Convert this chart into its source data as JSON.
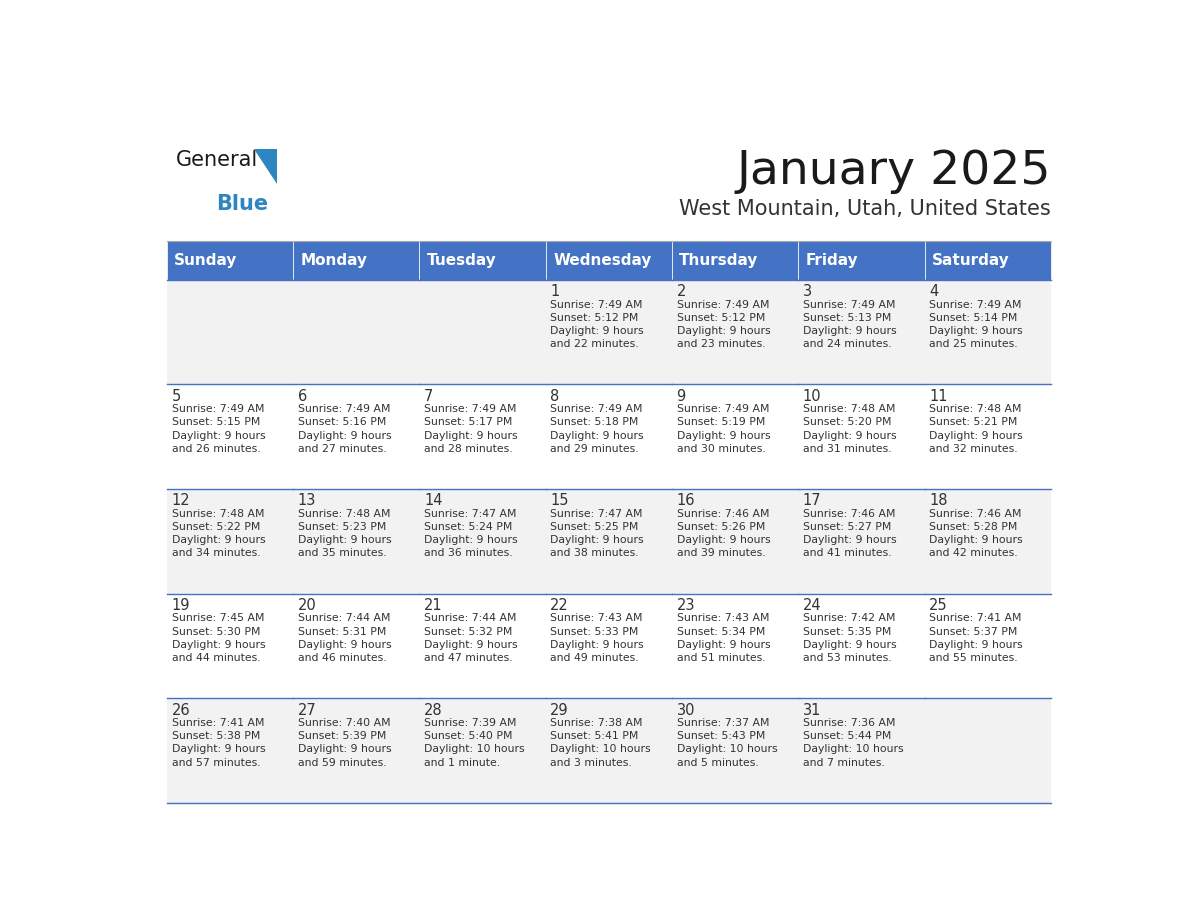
{
  "title": "January 2025",
  "subtitle": "West Mountain, Utah, United States",
  "days_of_week": [
    "Sunday",
    "Monday",
    "Tuesday",
    "Wednesday",
    "Thursday",
    "Friday",
    "Saturday"
  ],
  "header_bg": "#4472C4",
  "header_text": "#FFFFFF",
  "cell_bg_odd": "#F2F2F2",
  "cell_bg_even": "#FFFFFF",
  "cell_border": "#4472C4",
  "day_num_color": "#333333",
  "info_color": "#333333",
  "title_color": "#1a1a1a",
  "subtitle_color": "#333333",
  "logo_general_color": "#1a1a1a",
  "logo_blue_color": "#2E86C1",
  "weeks": [
    [
      {
        "day": 0,
        "info": ""
      },
      {
        "day": 0,
        "info": ""
      },
      {
        "day": 0,
        "info": ""
      },
      {
        "day": 1,
        "info": "Sunrise: 7:49 AM\nSunset: 5:12 PM\nDaylight: 9 hours\nand 22 minutes."
      },
      {
        "day": 2,
        "info": "Sunrise: 7:49 AM\nSunset: 5:12 PM\nDaylight: 9 hours\nand 23 minutes."
      },
      {
        "day": 3,
        "info": "Sunrise: 7:49 AM\nSunset: 5:13 PM\nDaylight: 9 hours\nand 24 minutes."
      },
      {
        "day": 4,
        "info": "Sunrise: 7:49 AM\nSunset: 5:14 PM\nDaylight: 9 hours\nand 25 minutes."
      }
    ],
    [
      {
        "day": 5,
        "info": "Sunrise: 7:49 AM\nSunset: 5:15 PM\nDaylight: 9 hours\nand 26 minutes."
      },
      {
        "day": 6,
        "info": "Sunrise: 7:49 AM\nSunset: 5:16 PM\nDaylight: 9 hours\nand 27 minutes."
      },
      {
        "day": 7,
        "info": "Sunrise: 7:49 AM\nSunset: 5:17 PM\nDaylight: 9 hours\nand 28 minutes."
      },
      {
        "day": 8,
        "info": "Sunrise: 7:49 AM\nSunset: 5:18 PM\nDaylight: 9 hours\nand 29 minutes."
      },
      {
        "day": 9,
        "info": "Sunrise: 7:49 AM\nSunset: 5:19 PM\nDaylight: 9 hours\nand 30 minutes."
      },
      {
        "day": 10,
        "info": "Sunrise: 7:48 AM\nSunset: 5:20 PM\nDaylight: 9 hours\nand 31 minutes."
      },
      {
        "day": 11,
        "info": "Sunrise: 7:48 AM\nSunset: 5:21 PM\nDaylight: 9 hours\nand 32 minutes."
      }
    ],
    [
      {
        "day": 12,
        "info": "Sunrise: 7:48 AM\nSunset: 5:22 PM\nDaylight: 9 hours\nand 34 minutes."
      },
      {
        "day": 13,
        "info": "Sunrise: 7:48 AM\nSunset: 5:23 PM\nDaylight: 9 hours\nand 35 minutes."
      },
      {
        "day": 14,
        "info": "Sunrise: 7:47 AM\nSunset: 5:24 PM\nDaylight: 9 hours\nand 36 minutes."
      },
      {
        "day": 15,
        "info": "Sunrise: 7:47 AM\nSunset: 5:25 PM\nDaylight: 9 hours\nand 38 minutes."
      },
      {
        "day": 16,
        "info": "Sunrise: 7:46 AM\nSunset: 5:26 PM\nDaylight: 9 hours\nand 39 minutes."
      },
      {
        "day": 17,
        "info": "Sunrise: 7:46 AM\nSunset: 5:27 PM\nDaylight: 9 hours\nand 41 minutes."
      },
      {
        "day": 18,
        "info": "Sunrise: 7:46 AM\nSunset: 5:28 PM\nDaylight: 9 hours\nand 42 minutes."
      }
    ],
    [
      {
        "day": 19,
        "info": "Sunrise: 7:45 AM\nSunset: 5:30 PM\nDaylight: 9 hours\nand 44 minutes."
      },
      {
        "day": 20,
        "info": "Sunrise: 7:44 AM\nSunset: 5:31 PM\nDaylight: 9 hours\nand 46 minutes."
      },
      {
        "day": 21,
        "info": "Sunrise: 7:44 AM\nSunset: 5:32 PM\nDaylight: 9 hours\nand 47 minutes."
      },
      {
        "day": 22,
        "info": "Sunrise: 7:43 AM\nSunset: 5:33 PM\nDaylight: 9 hours\nand 49 minutes."
      },
      {
        "day": 23,
        "info": "Sunrise: 7:43 AM\nSunset: 5:34 PM\nDaylight: 9 hours\nand 51 minutes."
      },
      {
        "day": 24,
        "info": "Sunrise: 7:42 AM\nSunset: 5:35 PM\nDaylight: 9 hours\nand 53 minutes."
      },
      {
        "day": 25,
        "info": "Sunrise: 7:41 AM\nSunset: 5:37 PM\nDaylight: 9 hours\nand 55 minutes."
      }
    ],
    [
      {
        "day": 26,
        "info": "Sunrise: 7:41 AM\nSunset: 5:38 PM\nDaylight: 9 hours\nand 57 minutes."
      },
      {
        "day": 27,
        "info": "Sunrise: 7:40 AM\nSunset: 5:39 PM\nDaylight: 9 hours\nand 59 minutes."
      },
      {
        "day": 28,
        "info": "Sunrise: 7:39 AM\nSunset: 5:40 PM\nDaylight: 10 hours\nand 1 minute."
      },
      {
        "day": 29,
        "info": "Sunrise: 7:38 AM\nSunset: 5:41 PM\nDaylight: 10 hours\nand 3 minutes."
      },
      {
        "day": 30,
        "info": "Sunrise: 7:37 AM\nSunset: 5:43 PM\nDaylight: 10 hours\nand 5 minutes."
      },
      {
        "day": 31,
        "info": "Sunrise: 7:36 AM\nSunset: 5:44 PM\nDaylight: 10 hours\nand 7 minutes."
      },
      {
        "day": 0,
        "info": ""
      }
    ]
  ]
}
